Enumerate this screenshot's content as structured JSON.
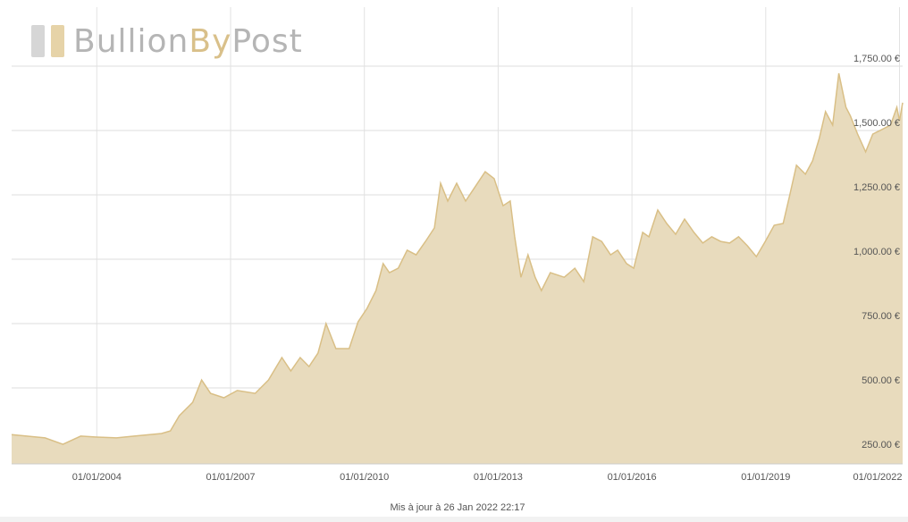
{
  "chart_data": {
    "type": "area",
    "logo": {
      "parts": [
        "Bullion",
        "By",
        "Post"
      ]
    },
    "footer": "Mis à jour à 26 Jan 2022 22:17",
    "color": "#e8dbbd",
    "line_color": "#d9bf86",
    "x": [
      2002.09,
      2002.84,
      2003.24,
      2003.64,
      2004.0,
      2004.44,
      2004.84,
      2005.45,
      2005.65,
      2005.85,
      2006.15,
      2006.35,
      2006.55,
      2006.85,
      2007.15,
      2007.55,
      2007.85,
      2008.15,
      2008.35,
      2008.56,
      2008.76,
      2008.96,
      2009.14,
      2009.36,
      2009.66,
      2009.86,
      2010.06,
      2010.26,
      2010.42,
      2010.56,
      2010.76,
      2010.96,
      2011.16,
      2011.37,
      2011.57,
      2011.71,
      2011.87,
      2012.07,
      2012.27,
      2012.47,
      2012.71,
      2012.91,
      2013.11,
      2013.27,
      2013.37,
      2013.51,
      2013.67,
      2013.83,
      2013.97,
      2014.17,
      2014.48,
      2014.72,
      2014.92,
      2015.12,
      2015.32,
      2015.52,
      2015.68,
      2015.88,
      2016.04,
      2016.24,
      2016.38,
      2016.58,
      2016.78,
      2016.98,
      2017.18,
      2017.39,
      2017.59,
      2017.79,
      2017.99,
      2018.19,
      2018.39,
      2018.59,
      2018.79,
      2018.99,
      2019.19,
      2019.39,
      2019.53,
      2019.69,
      2019.89,
      2020.05,
      2020.2,
      2020.34,
      2020.5,
      2020.64,
      2020.8,
      2020.9,
      2021.06,
      2021.24,
      2021.4,
      2021.6,
      2021.8,
      2021.94,
      2022.0,
      2022.07
    ],
    "values": [
      319,
      306,
      281,
      313,
      309,
      306,
      313,
      323,
      333,
      392,
      444,
      531,
      479,
      462,
      490,
      479,
      531,
      618,
      566,
      618,
      583,
      635,
      750,
      653,
      653,
      757,
      809,
      878,
      983,
      948,
      965,
      1035,
      1017,
      1069,
      1122,
      1295,
      1226,
      1295,
      1226,
      1278,
      1340,
      1313,
      1208,
      1226,
      1087,
      930,
      1017,
      930,
      878,
      948,
      930,
      965,
      913,
      1087,
      1069,
      1017,
      1035,
      983,
      965,
      1104,
      1087,
      1191,
      1139,
      1097,
      1156,
      1104,
      1063,
      1087,
      1069,
      1063,
      1087,
      1052,
      1010,
      1069,
      1132,
      1139,
      1243,
      1365,
      1330,
      1382,
      1469,
      1573,
      1521,
      1722,
      1590,
      1556,
      1486,
      1417,
      1486,
      1503,
      1521,
      1590,
      1538,
      1608
    ],
    "xlim": [
      2002.09,
      2022.07
    ],
    "xticks": [
      {
        "value": 2004,
        "label": "01/01/2004"
      },
      {
        "value": 2007,
        "label": "01/01/2007"
      },
      {
        "value": 2010,
        "label": "01/01/2010"
      },
      {
        "value": 2013,
        "label": "01/01/2013"
      },
      {
        "value": 2016,
        "label": "01/01/2016"
      },
      {
        "value": 2019,
        "label": "01/01/2019"
      },
      {
        "value": 2022,
        "label": "01/01/2022"
      }
    ],
    "ylim": [
      205,
      1979
    ],
    "yticks": [
      {
        "value": 250,
        "label": "250.00 €"
      },
      {
        "value": 500,
        "label": "500.00 €"
      },
      {
        "value": 750,
        "label": "750.00 €"
      },
      {
        "value": 1000,
        "label": "1,000.00 €"
      },
      {
        "value": 1250,
        "label": "1,250.00 €"
      },
      {
        "value": 1500,
        "label": "1,500.00 €"
      },
      {
        "value": 1750,
        "label": "1,750.00 €"
      }
    ],
    "grid": true
  }
}
